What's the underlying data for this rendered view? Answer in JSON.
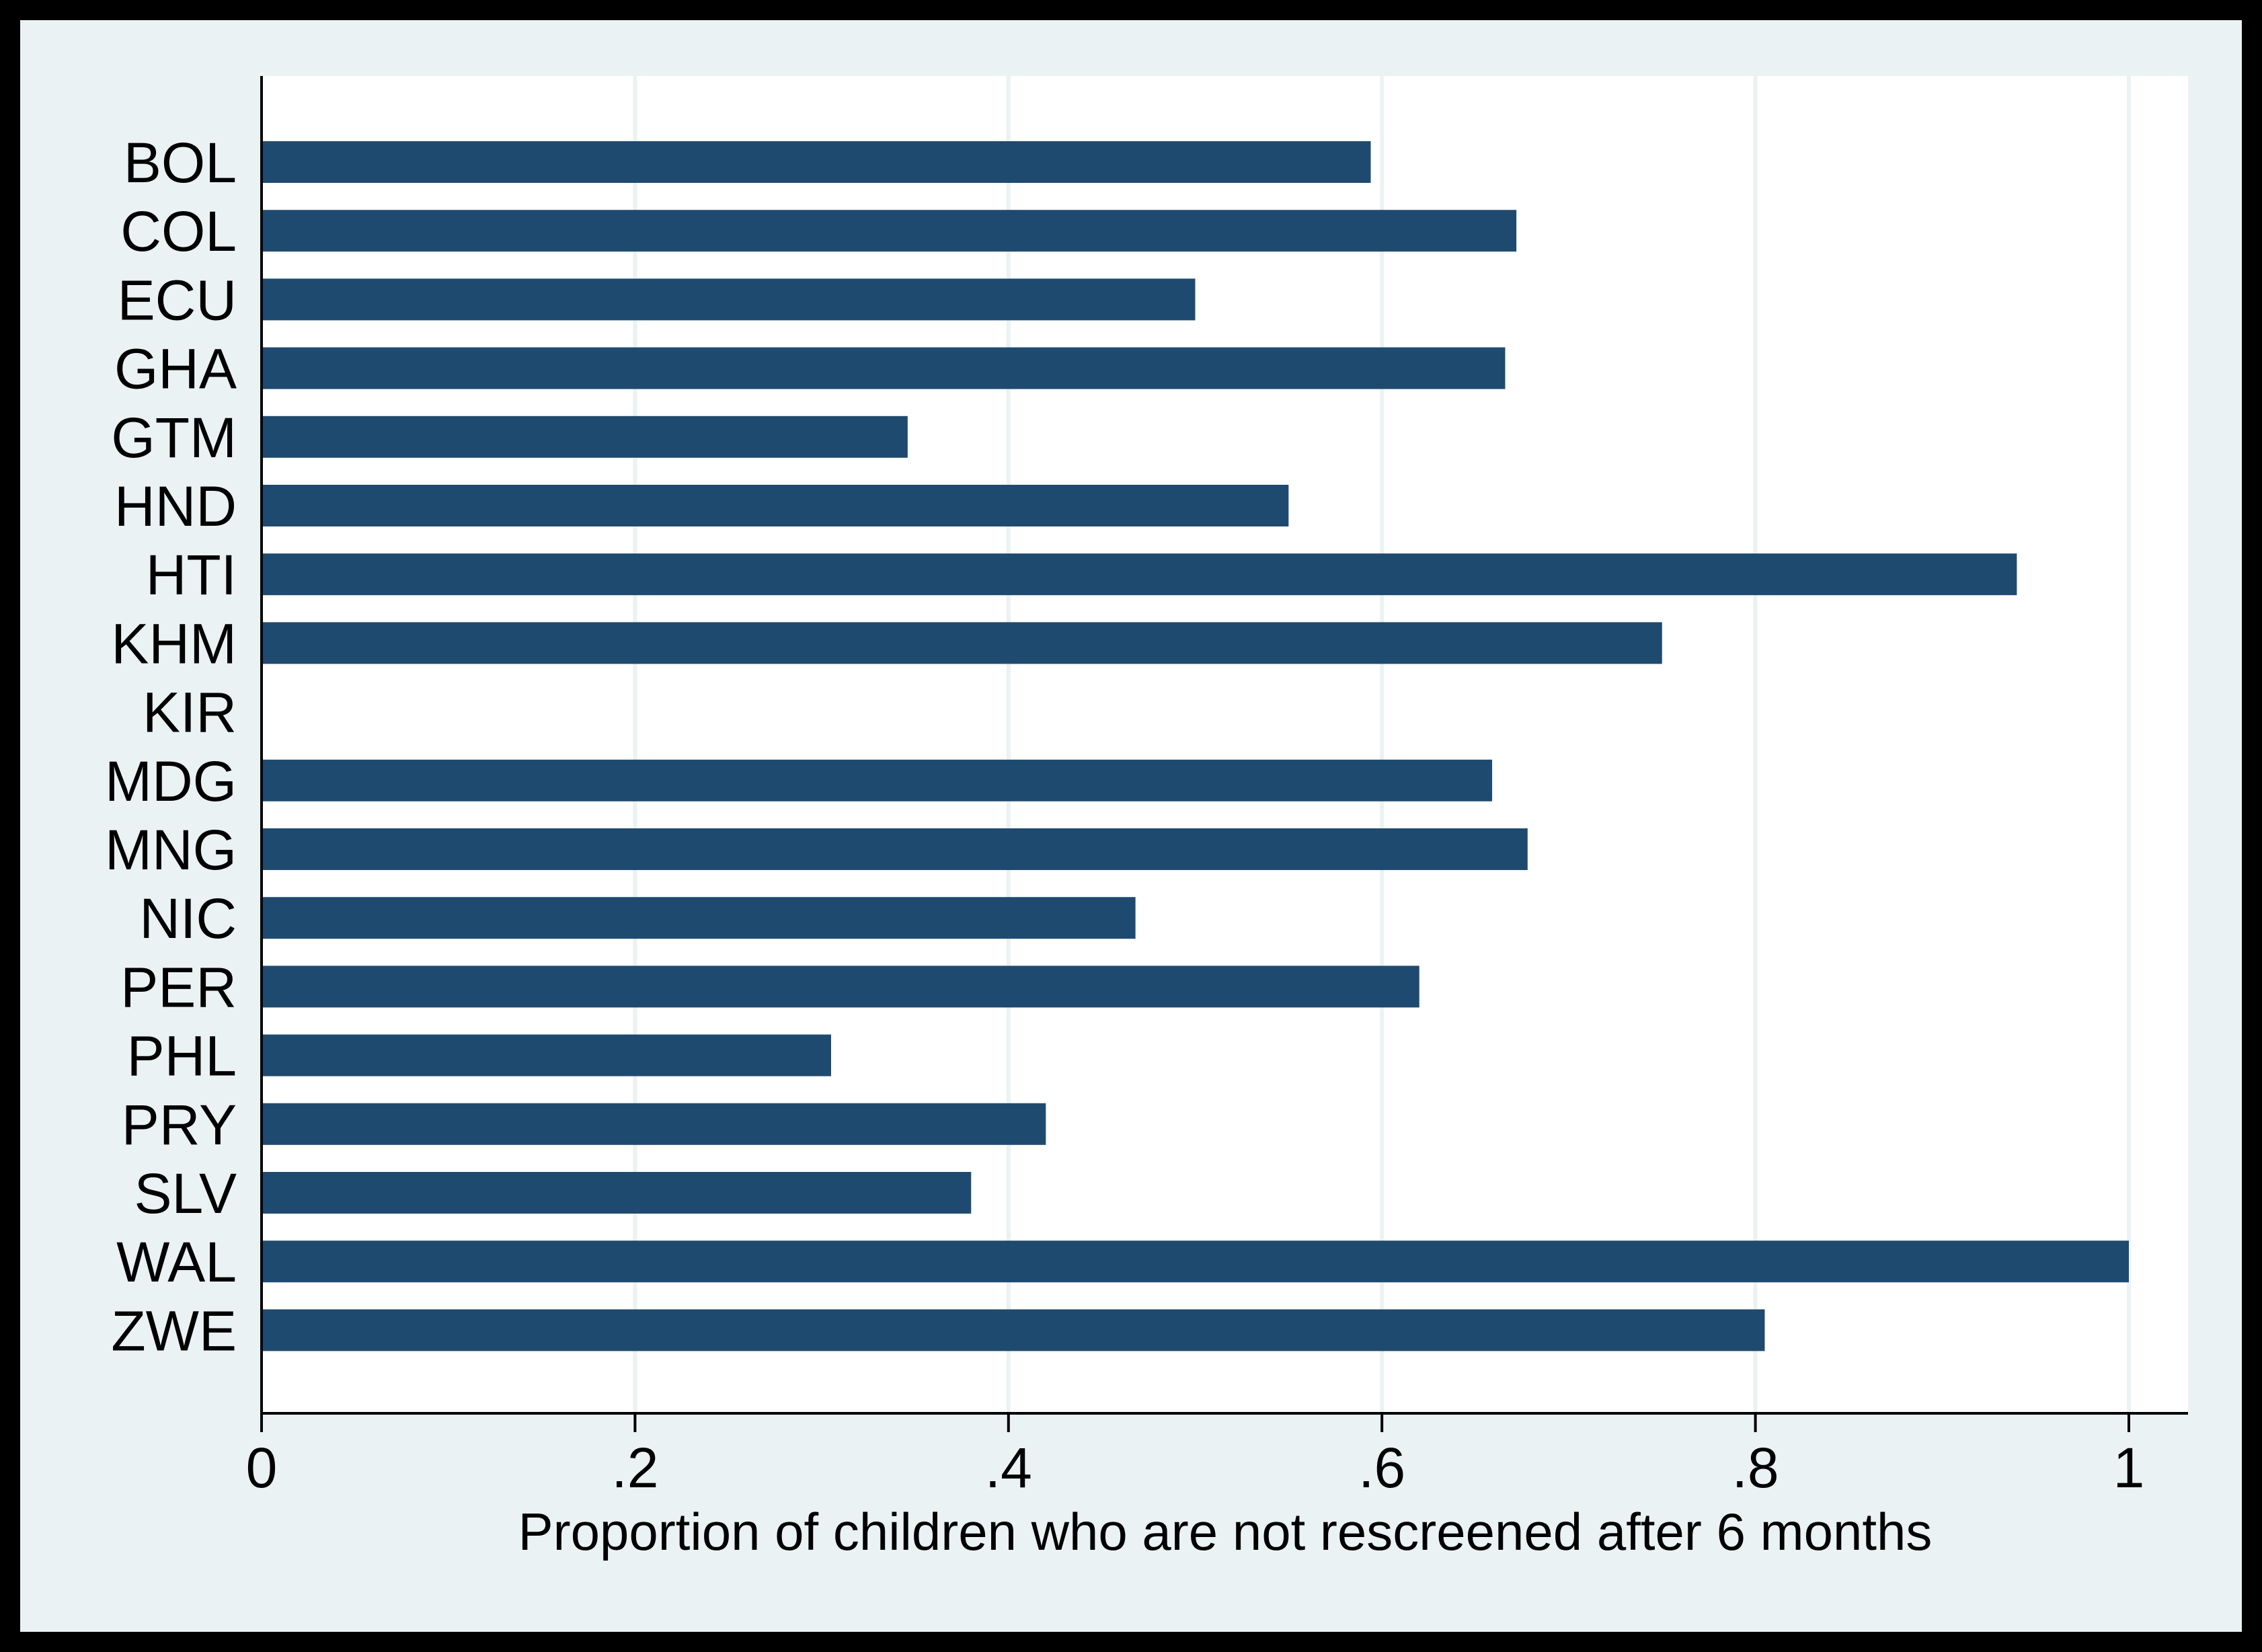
{
  "colors": {
    "frame": "#000000",
    "outer_background": "#eaf2f3",
    "plot_background": "#ffffff",
    "gridline": "#eaf2f3",
    "bar": "#1f4a6f",
    "axis": "#000000"
  },
  "chart_data": {
    "type": "bar",
    "orientation": "horizontal",
    "title": "",
    "xlabel": "Proportion of children who are not rescreened after 6 months",
    "ylabel": "",
    "xlim": [
      0,
      1.03
    ],
    "xticks": [
      0,
      0.2,
      0.4,
      0.6,
      0.8,
      1
    ],
    "xtick_labels": [
      "0",
      ".2",
      ".4",
      ".6",
      ".8",
      "1"
    ],
    "grid": true,
    "legend": "none",
    "categories": [
      "BOL",
      "COL",
      "ECU",
      "GHA",
      "GTM",
      "HND",
      "HTI",
      "KHM",
      "KIR",
      "MDG",
      "MNG",
      "NIC",
      "PER",
      "PHL",
      "PRY",
      "SLV",
      "WAL",
      "ZWE"
    ],
    "values": [
      0.594,
      0.672,
      0.5,
      0.666,
      0.346,
      0.55,
      0.94,
      0.75,
      0,
      0.659,
      0.678,
      0.468,
      0.62,
      0.305,
      0.42,
      0.38,
      1.0,
      0.805
    ]
  }
}
